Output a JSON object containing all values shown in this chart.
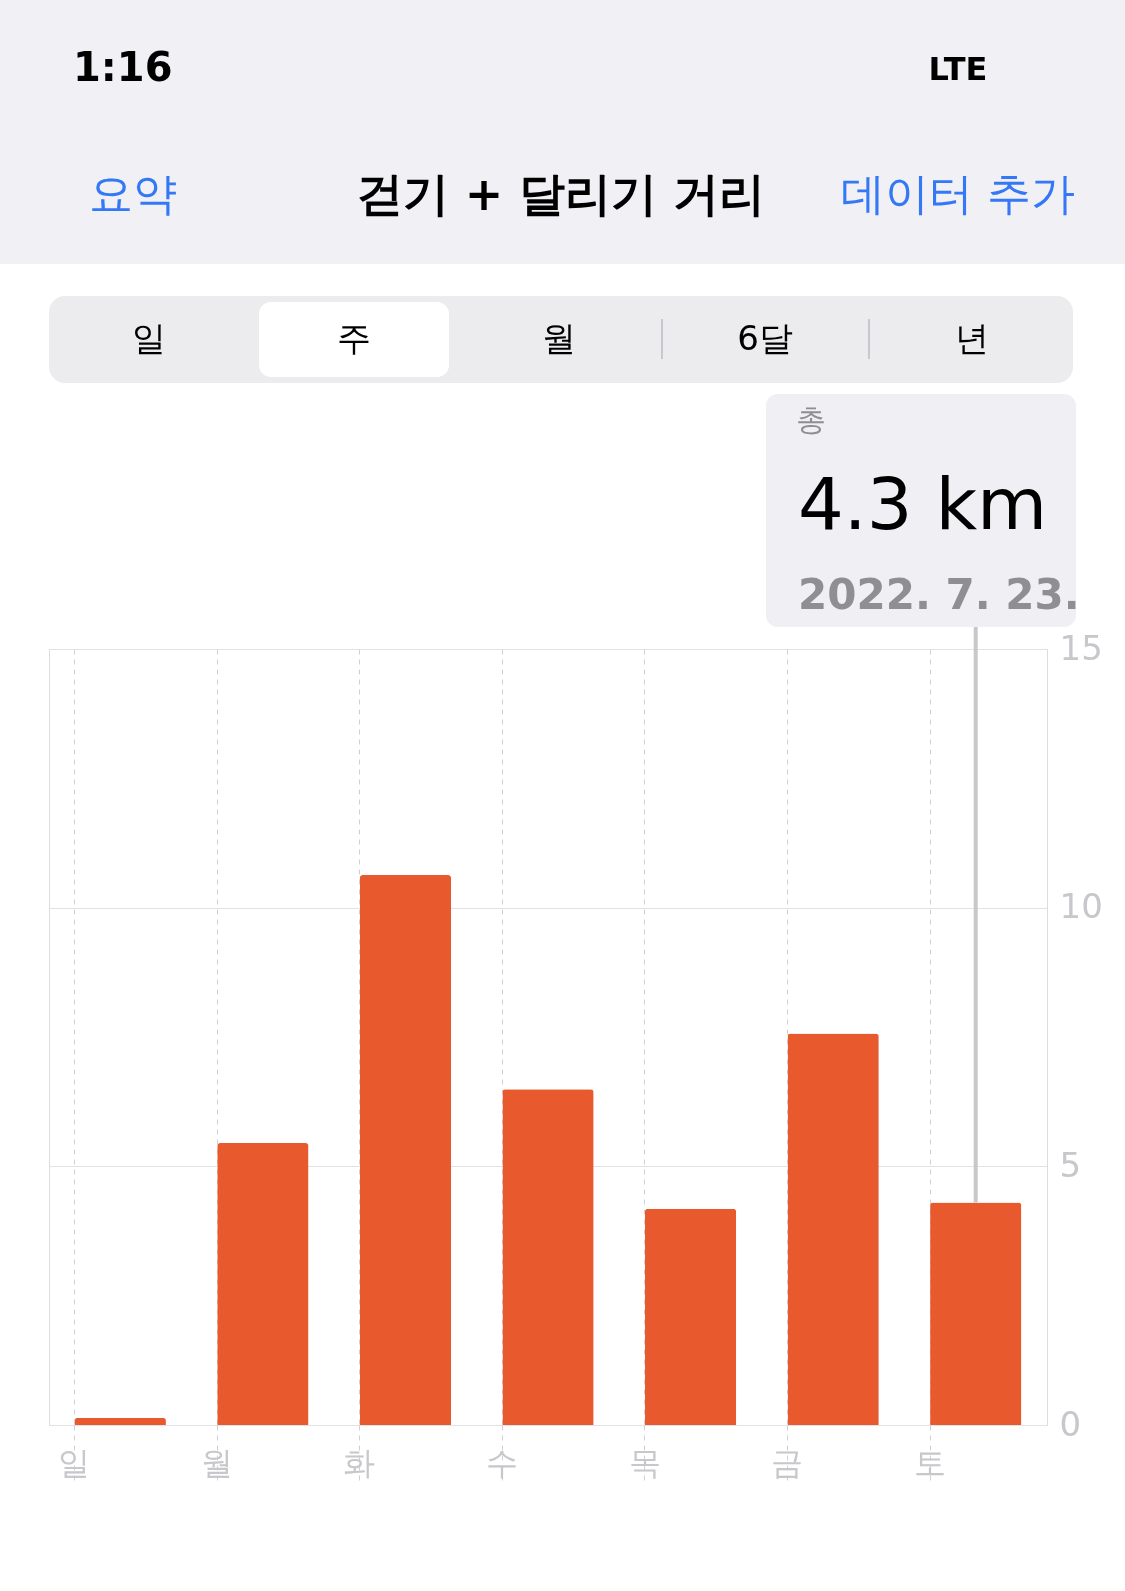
{
  "chart_data": {
    "type": "bar",
    "title": "걷기 + 달리기 거리",
    "categories": [
      "일",
      "월",
      "화",
      "수",
      "목",
      "금",
      "토"
    ],
    "values": [
      0.14,
      5.45,
      10.63,
      6.49,
      4.18,
      7.57,
      4.3
    ],
    "color": "#e8592e",
    "ylim": [
      0,
      15
    ],
    "yticks": [
      0,
      5,
      10,
      15
    ],
    "grid": true,
    "annotations": [
      "1:16",
      "LTE",
      "요약",
      "데이터 추가",
      "일",
      "주",
      "월",
      "6달",
      "년",
      "총",
      "2022. 7. 23.",
      "4.3 km"
    ]
  }
}
